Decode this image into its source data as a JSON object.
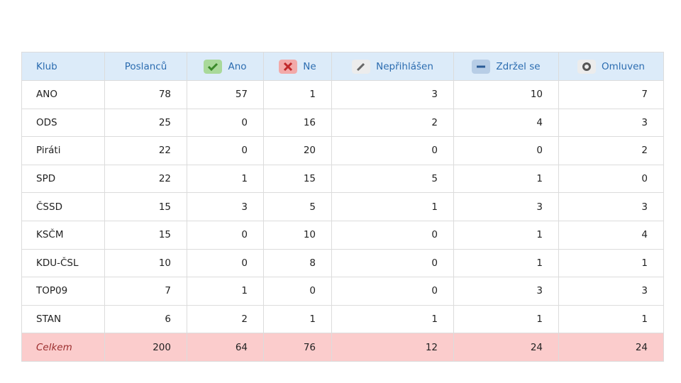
{
  "table": {
    "header": [
      "Klub",
      "Poslanců",
      "Ano",
      "Ne",
      "Nepřihlášen",
      "Zdržel se",
      "Omluven"
    ],
    "rows": [
      [
        "ANO",
        78,
        57,
        1,
        3,
        10,
        7
      ],
      [
        "ODS",
        25,
        0,
        16,
        2,
        4,
        3
      ],
      [
        "Piráti",
        22,
        0,
        20,
        0,
        0,
        2
      ],
      [
        "SPD",
        22,
        1,
        15,
        5,
        1,
        0
      ],
      [
        "ČSSD",
        15,
        3,
        5,
        1,
        3,
        3
      ],
      [
        "KSČM",
        15,
        0,
        10,
        0,
        1,
        4
      ],
      [
        "KDU-ČSL",
        10,
        0,
        8,
        0,
        1,
        1
      ],
      [
        "TOP09",
        7,
        1,
        0,
        0,
        3,
        3
      ],
      [
        "STAN",
        6,
        2,
        1,
        1,
        1,
        1
      ]
    ],
    "total": [
      "Celkem",
      200,
      64,
      76,
      12,
      24,
      24
    ]
  }
}
